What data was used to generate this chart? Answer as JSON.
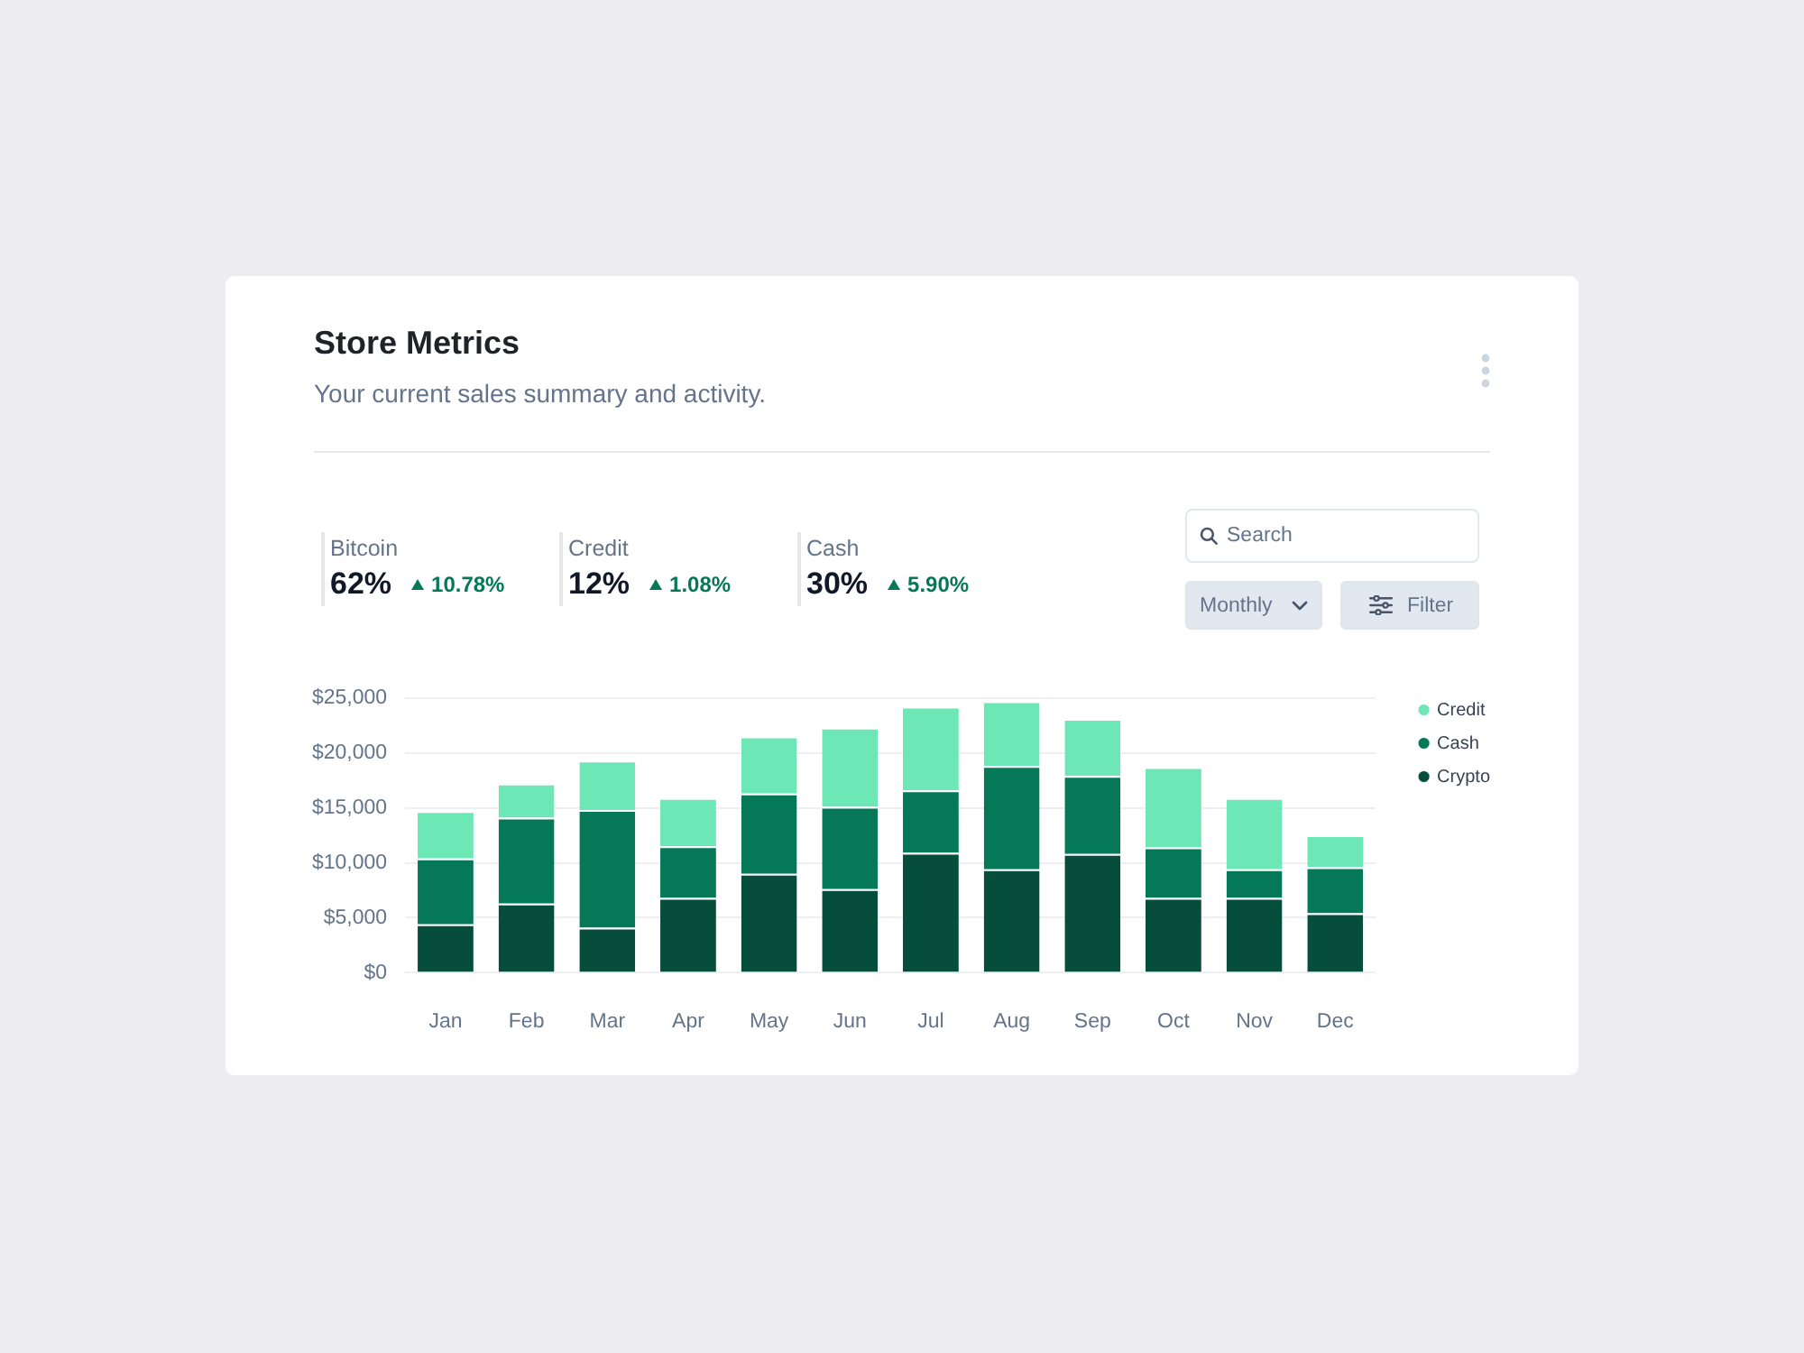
{
  "chart_data": [
    {
      "type": "other",
      "title": "Store Metrics",
      "subtitle": "Your current sales summary and activity.",
      "annotations": [
        "Bitcoin",
        "62%",
        "10.78%",
        "Credit",
        "12%",
        "1.08%",
        "Cash",
        "30%",
        "5.90%"
      ]
    },
    {
      "type": "bar",
      "stacked": true,
      "categories": [
        "Jan",
        "Feb",
        "Mar",
        "Apr",
        "May",
        "Jun",
        "Jul",
        "Aug",
        "Sep",
        "Oct",
        "Nov",
        "Dec"
      ],
      "series": [
        {
          "name": "Crypto",
          "color": "#064e3b",
          "values": [
            4400,
            6300,
            4100,
            6800,
            9000,
            7600,
            10900,
            9400,
            10800,
            6800,
            6800,
            5400
          ]
        },
        {
          "name": "Cash",
          "color": "#047857",
          "values": [
            6000,
            7800,
            10700,
            4700,
            7300,
            7500,
            5700,
            9400,
            7100,
            4600,
            2600,
            4200
          ]
        },
        {
          "name": "Credit",
          "color": "#6ee7b7",
          "values": [
            4300,
            3100,
            4500,
            4400,
            5200,
            7200,
            7600,
            5900,
            5200,
            7300,
            6500,
            2900
          ]
        }
      ],
      "ylim": [
        0,
        25000
      ],
      "yticks": [
        {
          "value": 0,
          "label": "$0"
        },
        {
          "value": 5000,
          "label": "$5,000"
        },
        {
          "value": 10000,
          "label": "$10,000"
        },
        {
          "value": 15000,
          "label": "$15,000"
        },
        {
          "value": 20000,
          "label": "$20,000"
        },
        {
          "value": 25000,
          "label": "$25,000"
        }
      ],
      "grid": "y",
      "legend": "right",
      "annotations": [
        "Search",
        "Monthly",
        "Filter"
      ]
    }
  ]
}
